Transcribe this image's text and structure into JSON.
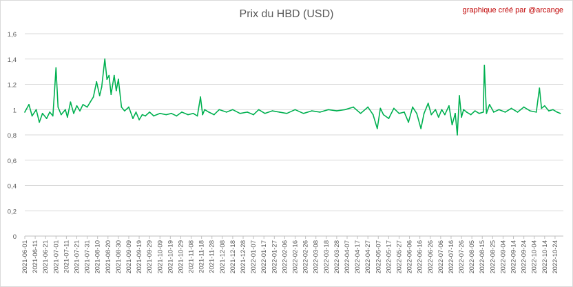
{
  "chart_data": {
    "type": "line",
    "title": "Prix du HBD (USD)",
    "credit": "graphique créé par @arcange",
    "xlabel": "",
    "ylabel": "",
    "ylim": [
      0,
      1.6
    ],
    "y_ticks": [
      "0",
      "0,2",
      "0,4",
      "0,6",
      "0,8",
      "1",
      "1,2",
      "1,4",
      "1,6"
    ],
    "x_ticks": [
      "2021-06-01",
      "2021-06-11",
      "2021-06-21",
      "2021-07-01",
      "2021-07-11",
      "2021-07-21",
      "2021-07-31",
      "2021-08-10",
      "2021-08-20",
      "2021-08-30",
      "2021-09-09",
      "2021-09-19",
      "2021-09-29",
      "2021-10-09",
      "2021-10-19",
      "2021-10-29",
      "2021-11-08",
      "2021-11-18",
      "2021-11-28",
      "2021-12-08",
      "2021-12-18",
      "2021-12-28",
      "2022-01-07",
      "2022-01-17",
      "2022-01-27",
      "2022-02-06",
      "2022-02-16",
      "2022-02-26",
      "2022-03-08",
      "2022-03-18",
      "2022-03-28",
      "2022-04-07",
      "2022-04-17",
      "2022-04-27",
      "2022-05-07",
      "2022-05-17",
      "2022-05-27",
      "2022-06-06",
      "2022-06-16",
      "2022-06-26",
      "2022-07-06",
      "2022-07-16",
      "2022-07-26",
      "2022-08-05",
      "2022-08-15",
      "2022-08-25",
      "2022-09-04",
      "2022-09-14",
      "2022-09-24",
      "2022-10-04",
      "2022-10-14",
      "2022-10-24"
    ],
    "grid": true,
    "legend": "none",
    "series_color": "#00b050",
    "series": [
      {
        "x": [
          "2021-06-01",
          "2021-06-05",
          "2021-06-08",
          "2021-06-12",
          "2021-06-15",
          "2021-06-18",
          "2021-06-22",
          "2021-06-25",
          "2021-06-28",
          "2021-06-30",
          "2021-07-01",
          "2021-07-03",
          "2021-07-06",
          "2021-07-10",
          "2021-07-12",
          "2021-07-15",
          "2021-07-18",
          "2021-07-21",
          "2021-07-24",
          "2021-07-27",
          "2021-07-31",
          "2021-08-03",
          "2021-08-06",
          "2021-08-09",
          "2021-08-12",
          "2021-08-14",
          "2021-08-17",
          "2021-08-19",
          "2021-08-21",
          "2021-08-23",
          "2021-08-26",
          "2021-08-28",
          "2021-08-30",
          "2021-09-02",
          "2021-09-05",
          "2021-09-09",
          "2021-09-13",
          "2021-09-16",
          "2021-09-19",
          "2021-09-22",
          "2021-09-25",
          "2021-09-29",
          "2021-10-03",
          "2021-10-09",
          "2021-10-15",
          "2021-10-20",
          "2021-10-25",
          "2021-10-30",
          "2021-11-05",
          "2021-11-10",
          "2021-11-14",
          "2021-11-17",
          "2021-11-19",
          "2021-11-21",
          "2021-11-25",
          "2021-11-30",
          "2021-12-05",
          "2021-12-12",
          "2021-12-18",
          "2021-12-25",
          "2022-01-01",
          "2022-01-07",
          "2022-01-12",
          "2022-01-18",
          "2022-01-25",
          "2022-02-01",
          "2022-02-08",
          "2022-02-16",
          "2022-02-24",
          "2022-03-04",
          "2022-03-12",
          "2022-03-20",
          "2022-03-28",
          "2022-04-05",
          "2022-04-13",
          "2022-04-20",
          "2022-04-27",
          "2022-05-02",
          "2022-05-06",
          "2022-05-09",
          "2022-05-12",
          "2022-05-17",
          "2022-05-22",
          "2022-05-27",
          "2022-06-01",
          "2022-06-05",
          "2022-06-09",
          "2022-06-13",
          "2022-06-17",
          "2022-06-20",
          "2022-06-24",
          "2022-06-27",
          "2022-07-01",
          "2022-07-04",
          "2022-07-07",
          "2022-07-10",
          "2022-07-14",
          "2022-07-17",
          "2022-07-20",
          "2022-07-22",
          "2022-07-24",
          "2022-07-26",
          "2022-07-28",
          "2022-07-31",
          "2022-08-04",
          "2022-08-08",
          "2022-08-12",
          "2022-08-16",
          "2022-08-17",
          "2022-08-19",
          "2022-08-22",
          "2022-08-26",
          "2022-08-31",
          "2022-09-06",
          "2022-09-12",
          "2022-09-18",
          "2022-09-24",
          "2022-09-30",
          "2022-10-06",
          "2022-10-09",
          "2022-10-11",
          "2022-10-14",
          "2022-10-18",
          "2022-10-22",
          "2022-10-26",
          "2022-10-29"
        ],
        "y": [
          0.98,
          1.04,
          0.95,
          1.0,
          0.9,
          0.97,
          0.93,
          0.98,
          0.95,
          1.2,
          1.33,
          1.02,
          0.96,
          1.0,
          0.94,
          1.06,
          0.97,
          1.03,
          0.99,
          1.04,
          1.02,
          1.06,
          1.1,
          1.22,
          1.11,
          1.18,
          1.4,
          1.24,
          1.27,
          1.12,
          1.27,
          1.15,
          1.24,
          1.02,
          0.99,
          1.02,
          0.93,
          0.98,
          0.92,
          0.96,
          0.95,
          0.98,
          0.95,
          0.97,
          0.96,
          0.97,
          0.95,
          0.98,
          0.96,
          0.97,
          0.95,
          1.1,
          0.96,
          1.0,
          0.98,
          0.96,
          1.0,
          0.98,
          1.0,
          0.97,
          0.98,
          0.96,
          1.0,
          0.97,
          0.99,
          0.98,
          0.97,
          1.0,
          0.97,
          0.99,
          0.98,
          1.0,
          0.99,
          1.0,
          1.02,
          0.97,
          1.02,
          0.96,
          0.85,
          1.01,
          0.96,
          0.93,
          1.01,
          0.97,
          0.98,
          0.9,
          1.02,
          0.97,
          0.85,
          0.97,
          1.05,
          0.96,
          1.0,
          0.94,
          1.0,
          0.96,
          1.03,
          0.88,
          0.97,
          0.8,
          1.11,
          0.94,
          1.0,
          0.98,
          0.96,
          0.99,
          0.97,
          0.98,
          1.35,
          0.97,
          1.04,
          0.98,
          1.0,
          0.98,
          1.01,
          0.98,
          1.02,
          0.99,
          0.98,
          1.17,
          1.01,
          1.03,
          0.99,
          1.0,
          0.98,
          0.97
        ]
      }
    ]
  }
}
